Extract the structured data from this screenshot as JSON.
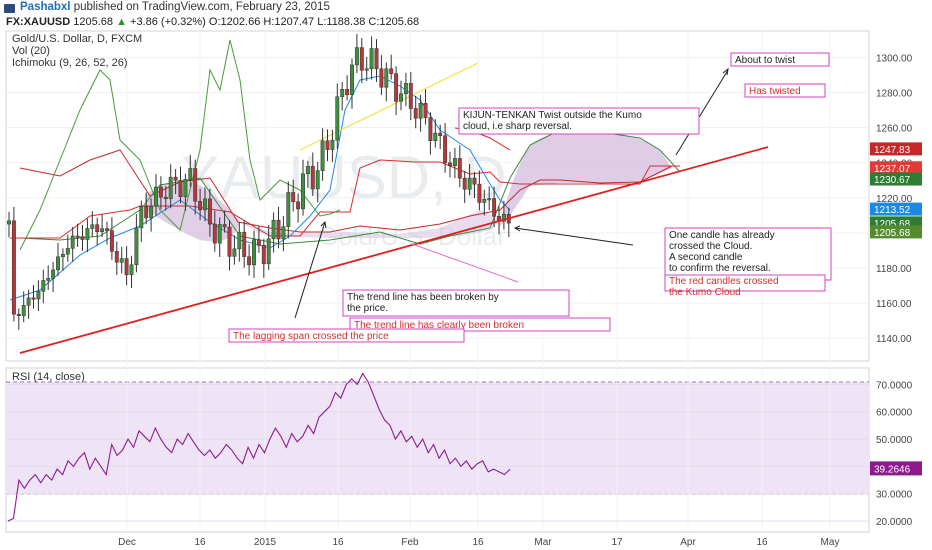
{
  "header": {
    "author": "Pashabxl",
    "published_text": "published on TradingView.com, February 23, 2015",
    "symbol": "FX:XAUUSD",
    "last": "1205.68",
    "change": "+3.86 (+0.32%)",
    "open_label": "O:",
    "open": "1202.66",
    "high_label": "H:",
    "high": "1207.47",
    "low_label": "L:",
    "low": "1188.38",
    "close_label": "C:",
    "close": "1205.68"
  },
  "legend": [
    "Gold/U.S. Dollar, D, FXCM",
    "Vol (20)",
    "Ichimoku (9, 26, 52, 26)"
  ],
  "watermark": {
    "symbol": "XAUUSD, D",
    "name": "Gold/U.S. Dollar"
  },
  "chart_data": [
    {
      "type": "candlestick",
      "title": "Gold/U.S. Dollar, D, FXCM",
      "ylim": [
        1127,
        1315
      ],
      "yticks": [
        1140,
        1160,
        1180,
        1200,
        1220,
        1240,
        1260,
        1280,
        1300
      ],
      "ytick_labels": [
        "1140.00",
        "1160.00",
        "1180.00",
        "1200.00",
        "1220.00",
        "1240.00",
        "1260.00",
        "1280.00",
        "1300.00"
      ],
      "xticks": [
        {
          "label": "Dec",
          "x": 127
        },
        {
          "label": "16",
          "x": 200
        },
        {
          "label": "2015",
          "x": 265
        },
        {
          "label": "16",
          "x": 338
        },
        {
          "label": "Feb",
          "x": 410
        },
        {
          "label": "16",
          "x": 478
        },
        {
          "label": "Mar",
          "x": 543
        },
        {
          "label": "17",
          "x": 617
        },
        {
          "label": "Apr",
          "x": 688
        },
        {
          "label": "16",
          "x": 762
        },
        {
          "label": "May",
          "x": 830
        }
      ],
      "price_badges": [
        {
          "value": "1247.83",
          "color": "#c62828"
        },
        {
          "value": "1237.07",
          "color": "#e53935"
        },
        {
          "value": "1230.67",
          "color": "#2e7d32"
        },
        {
          "value": "1213.52",
          "color": "#1e88e5"
        },
        {
          "value": "1205.68",
          "color": "#2e7d32"
        },
        {
          "value": "1205.68",
          "color": "#558b2f"
        }
      ],
      "candle_color_up": "#3f8f3f",
      "candle_color_down": "#b23a3a"
    },
    {
      "type": "line",
      "title": "RSI (14, close)",
      "ylim": [
        16,
        76
      ],
      "yticks": [
        20,
        30,
        40,
        50,
        60,
        70
      ],
      "ytick_labels": [
        "20.0000",
        "30.0000",
        "40.0000",
        "50.0000",
        "60.0000",
        "70.0000"
      ],
      "band": [
        30,
        70
      ],
      "last_value": "39.2646",
      "series": [
        {
          "color": "#8e1b8e",
          "values": [
            20,
            21,
            35,
            32,
            35,
            37,
            34,
            37,
            35,
            39,
            37,
            42,
            40,
            43,
            45,
            39,
            43,
            40,
            37,
            48,
            44,
            46,
            50,
            47,
            53,
            51,
            49,
            54,
            50,
            47,
            45,
            50,
            48,
            52,
            49,
            46,
            44,
            46,
            43,
            45,
            48,
            46,
            43,
            41,
            47,
            43,
            48,
            45,
            50,
            54,
            51,
            47,
            52,
            49,
            51,
            55,
            52,
            58,
            60,
            62,
            67,
            65,
            70,
            72,
            70,
            74,
            71,
            66,
            61,
            57,
            55,
            50,
            53,
            49,
            51,
            47,
            50,
            45,
            48,
            43,
            46,
            41,
            43,
            40,
            42,
            39,
            41,
            42,
            38,
            39,
            38,
            37,
            39
          ]
        }
      ]
    }
  ],
  "annotations": [
    {
      "text": "About to twist",
      "color": "#222"
    },
    {
      "text": "Has twisted",
      "color": "#d32f2f"
    },
    {
      "text": "KIJUN-TENKAN Twist outside the Kumo\ncloud, i.e sharp reversal.",
      "color": "#222"
    },
    {
      "text": "One candle has already\ncrossed the Cloud.\nA second candle\nto confirm the reversal.",
      "color": "#222"
    },
    {
      "text": "The red candles crossed\nthe Kumo Cloud",
      "color": "#d32f2f"
    },
    {
      "text": "The trend line has been broken by\nthe price.",
      "color": "#222"
    },
    {
      "text": "The trend line has clearly been broken",
      "color": "#d32f2f"
    },
    {
      "text": "The lagging span crossed the price",
      "color": "#d32f2f"
    }
  ]
}
